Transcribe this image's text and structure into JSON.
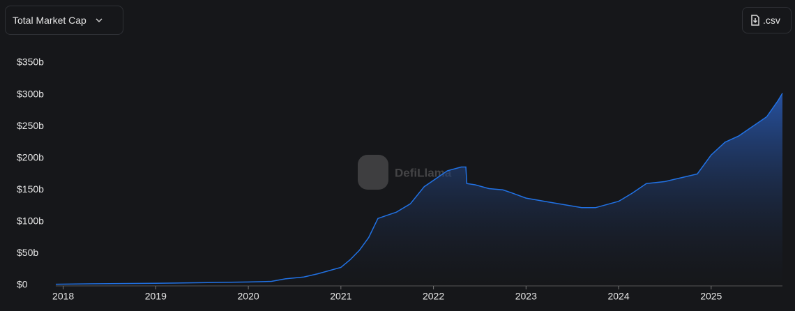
{
  "dropdown": "Total Market Cap",
  "download": ".csv",
  "watermark": "DefiLlama",
  "chart_data": {
    "type": "area",
    "color": "#2172e5",
    "x": [
      2017.92,
      2018.5,
      2019.0,
      2019.5,
      2020.0,
      2020.25,
      2020.4,
      2020.6,
      2020.75,
      2021.0,
      2021.1,
      2021.2,
      2021.3,
      2021.4,
      2021.5,
      2021.6,
      2021.75,
      2021.9,
      2022.0,
      2022.15,
      2022.3,
      2022.35,
      2022.36,
      2022.45,
      2022.6,
      2022.75,
      2022.85,
      2023.0,
      2023.2,
      2023.4,
      2023.6,
      2023.75,
      2024.0,
      2024.15,
      2024.3,
      2024.5,
      2024.7,
      2024.85,
      2025.0,
      2025.15,
      2025.3,
      2025.45,
      2025.6,
      2025.72,
      2025.77
    ],
    "values": [
      1.5,
      2.5,
      3,
      4,
      5,
      6,
      10,
      13,
      18,
      28,
      40,
      55,
      75,
      105,
      110,
      115,
      128,
      155,
      165,
      180,
      186,
      186,
      160,
      158,
      152,
      150,
      145,
      137,
      132,
      127,
      122,
      122,
      132,
      145,
      160,
      163,
      170,
      175,
      205,
      225,
      235,
      250,
      265,
      290,
      302
    ],
    "xlim": [
      2017.92,
      2025.77
    ],
    "xticks": [
      2018,
      2019,
      2020,
      2021,
      2022,
      2023,
      2024,
      2025
    ],
    "ylim": [
      0,
      350
    ],
    "yticks": [
      {
        "value": 0,
        "label": "$0"
      },
      {
        "value": 50,
        "label": "$50b"
      },
      {
        "value": 100,
        "label": "$100b"
      },
      {
        "value": 150,
        "label": "$150b"
      },
      {
        "value": 200,
        "label": "$200b"
      },
      {
        "value": 250,
        "label": "$250b"
      },
      {
        "value": 300,
        "label": "$300b"
      },
      {
        "value": 350,
        "label": "$350b"
      }
    ]
  }
}
